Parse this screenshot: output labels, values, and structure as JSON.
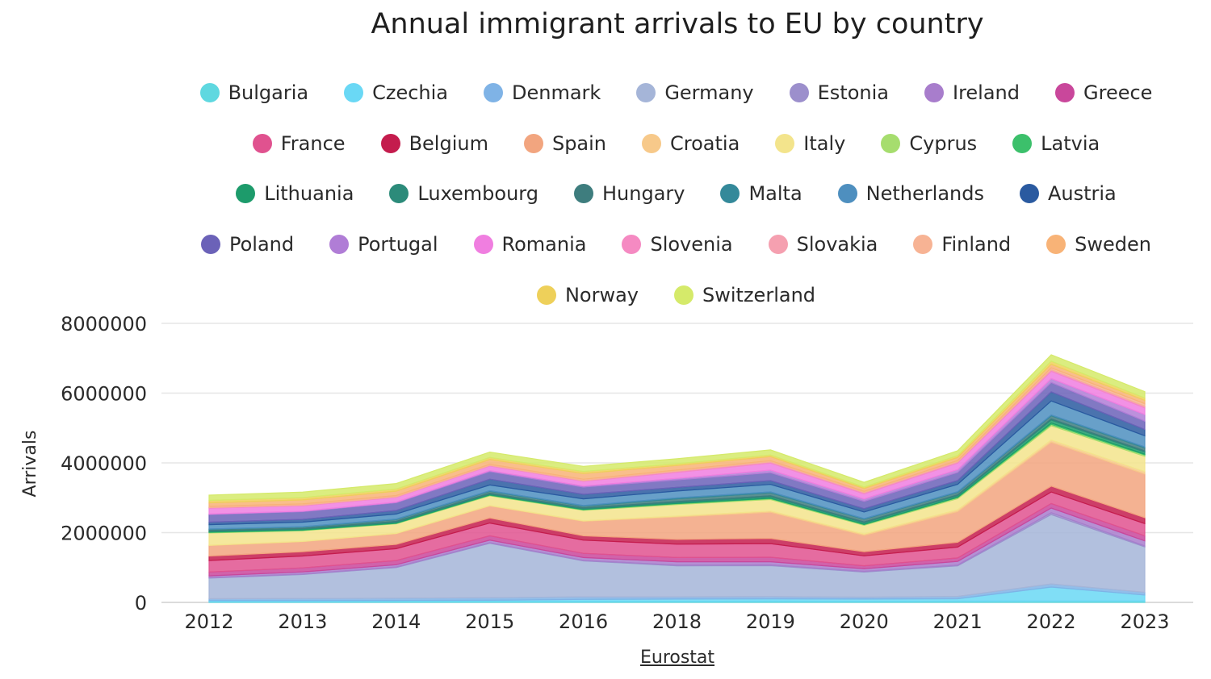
{
  "chart_data": {
    "type": "area",
    "stacked": true,
    "title": "Annual immigrant arrivals to EU by country",
    "xlabel": "",
    "ylabel": "Arrivals",
    "source": "Eurostat",
    "ylim": [
      0,
      8000000
    ],
    "yticks": [
      "0",
      "2000000",
      "4000000",
      "6000000",
      "8000000"
    ],
    "yticks_values": [
      0,
      2000000,
      4000000,
      6000000,
      8000000
    ],
    "grid": true,
    "legend_position": "top",
    "categories": [
      "2012",
      "2013",
      "2014",
      "2015",
      "2016",
      "2018",
      "2019",
      "2020",
      "2021",
      "2022",
      "2023"
    ],
    "series": [
      {
        "name": "Bulgaria",
        "color": "#5fd8e0",
        "values": [
          20000,
          20000,
          25000,
          25000,
          25000,
          30000,
          35000,
          30000,
          35000,
          40000,
          40000
        ]
      },
      {
        "name": "Czechia",
        "color": "#6ad8f5",
        "values": [
          30000,
          30000,
          30000,
          35000,
          60000,
          65000,
          65000,
          65000,
          70000,
          400000,
          170000
        ]
      },
      {
        "name": "Denmark",
        "color": "#7fb3e6",
        "values": [
          55000,
          60000,
          65000,
          75000,
          75000,
          65000,
          65000,
          55000,
          65000,
          90000,
          80000
        ]
      },
      {
        "name": "Germany",
        "color": "#a5b5d8",
        "values": [
          590000,
          690000,
          880000,
          1560000,
          1030000,
          890000,
          890000,
          720000,
          880000,
          1990000,
          1300000
        ]
      },
      {
        "name": "Estonia",
        "color": "#9c8fcc",
        "values": [
          15000,
          15000,
          15000,
          15000,
          15000,
          20000,
          20000,
          20000,
          20000,
          50000,
          30000
        ]
      },
      {
        "name": "Ireland",
        "color": "#a87dcc",
        "values": [
          50000,
          60000,
          65000,
          75000,
          80000,
          95000,
          90000,
          75000,
          105000,
          135000,
          145000
        ]
      },
      {
        "name": "Greece",
        "color": "#c9479b",
        "values": [
          110000,
          115000,
          120000,
          125000,
          120000,
          120000,
          130000,
          85000,
          100000,
          130000,
          145000
        ]
      },
      {
        "name": "France",
        "color": "#e0528f",
        "values": [
          330000,
          340000,
          340000,
          365000,
          380000,
          385000,
          390000,
          285000,
          310000,
          330000,
          350000
        ]
      },
      {
        "name": "Belgium",
        "color": "#c41c4d",
        "values": [
          130000,
          125000,
          125000,
          145000,
          125000,
          135000,
          150000,
          120000,
          140000,
          170000,
          170000
        ]
      },
      {
        "name": "Spain",
        "color": "#f2a57f",
        "values": [
          300000,
          285000,
          305000,
          345000,
          415000,
          645000,
          750000,
          470000,
          880000,
          1260000,
          1250000
        ]
      },
      {
        "name": "Croatia",
        "color": "#f7c98a",
        "values": [
          10000,
          10000,
          10000,
          12000,
          15000,
          25000,
          35000,
          35000,
          50000,
          60000,
          70000
        ]
      },
      {
        "name": "Italy",
        "color": "#f3e48c",
        "values": [
          350000,
          305000,
          275000,
          280000,
          300000,
          330000,
          330000,
          250000,
          320000,
          410000,
          440000
        ]
      },
      {
        "name": "Cyprus",
        "color": "#a6dd6e",
        "values": [
          17000,
          13000,
          10000,
          15000,
          17000,
          23000,
          26000,
          22000,
          30000,
          40000,
          40000
        ]
      },
      {
        "name": "Latvia",
        "color": "#3cc06b",
        "values": [
          13000,
          10000,
          10000,
          10000,
          8000,
          10000,
          11000,
          9000,
          9000,
          40000,
          20000
        ]
      },
      {
        "name": "Lithuania",
        "color": "#1d9b6b",
        "values": [
          20000,
          22000,
          24000,
          22000,
          20000,
          28000,
          40000,
          43000,
          44000,
          86000,
          65000
        ]
      },
      {
        "name": "Luxembourg",
        "color": "#2c8b7a",
        "values": [
          21000,
          21000,
          22000,
          23000,
          23000,
          24000,
          27000,
          22000,
          25000,
          30000,
          28000
        ]
      },
      {
        "name": "Hungary",
        "color": "#3e7d7e",
        "values": [
          34000,
          39000,
          54000,
          58000,
          53000,
          82000,
          85000,
          80000,
          72000,
          90000,
          86000
        ]
      },
      {
        "name": "Malta",
        "color": "#34899a",
        "values": [
          10000,
          11000,
          15000,
          17000,
          17000,
          26000,
          28000,
          16000,
          20000,
          25000,
          28000
        ]
      },
      {
        "name": "Netherlands",
        "color": "#4e8fbf",
        "values": [
          125000,
          130000,
          145000,
          165000,
          190000,
          195000,
          215000,
          190000,
          210000,
          400000,
          320000
        ]
      },
      {
        "name": "Austria",
        "color": "#2a5aa0",
        "values": [
          70000,
          80000,
          100000,
          165000,
          130000,
          105000,
          110000,
          95000,
          110000,
          260000,
          180000
        ]
      },
      {
        "name": "Poland",
        "color": "#6b62b8",
        "values": [
          220000,
          220000,
          222000,
          218000,
          208000,
          215000,
          227000,
          211000,
          230000,
          270000,
          240000
        ]
      },
      {
        "name": "Portugal",
        "color": "#b07dd6",
        "values": [
          15000,
          17000,
          19000,
          29000,
          30000,
          43000,
          72000,
          68000,
          80000,
          110000,
          190000
        ]
      },
      {
        "name": "Romania",
        "color": "#f07ee0",
        "values": [
          167000,
          153000,
          136000,
          132000,
          137000,
          172000,
          203000,
          146000,
          190000,
          210000,
          190000
        ]
      },
      {
        "name": "Slovenia",
        "color": "#f58ac2",
        "values": [
          15000,
          14000,
          14000,
          15000,
          16000,
          29000,
          31000,
          35000,
          30000,
          40000,
          40000
        ]
      },
      {
        "name": "Slovakia",
        "color": "#f5a0b0",
        "values": [
          5000,
          5000,
          5000,
          7000,
          7000,
          7000,
          7000,
          6000,
          7000,
          10000,
          10000
        ]
      },
      {
        "name": "Finland",
        "color": "#f7b394",
        "values": [
          31000,
          32000,
          32000,
          28000,
          35000,
          31000,
          32000,
          33000,
          35000,
          50000,
          70000
        ]
      },
      {
        "name": "Sweden",
        "color": "#f8b377",
        "values": [
          103000,
          116000,
          127000,
          135000,
          163000,
          132000,
          116000,
          82000,
          90000,
          102000,
          95000
        ]
      },
      {
        "name": "Norway",
        "color": "#eed05a",
        "values": [
          70000,
          66000,
          61000,
          59000,
          58000,
          47000,
          47000,
          38000,
          50000,
          90000,
          70000
        ]
      },
      {
        "name": "Switzerland",
        "color": "#d5ea6a",
        "values": [
          149000,
          160000,
          156000,
          154000,
          149000,
          144000,
          145000,
          136000,
          141000,
          181000,
          181000
        ]
      }
    ]
  }
}
